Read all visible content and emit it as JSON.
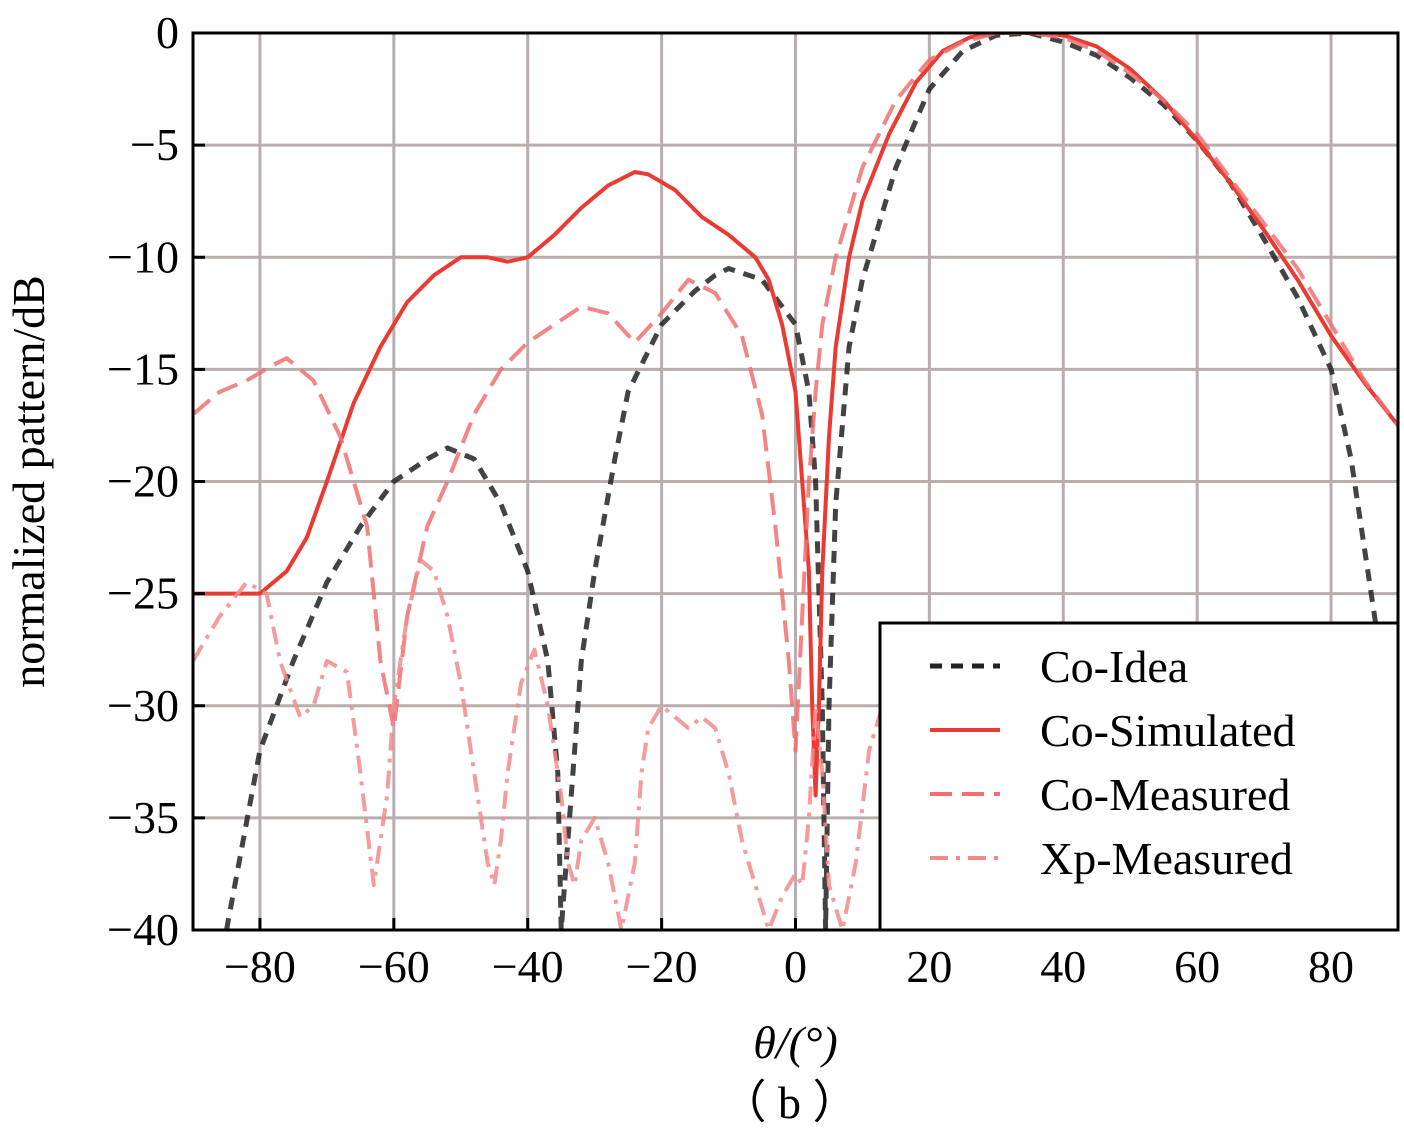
{
  "chart_data": {
    "type": "line",
    "xlabel": "θ/(°)",
    "ylabel": "normalized pattern/dB",
    "caption": "（ b ）",
    "xlim": [
      -90,
      90
    ],
    "ylim": [
      -40,
      0
    ],
    "xticks": [
      -80,
      -60,
      -40,
      -20,
      0,
      20,
      40,
      60,
      80
    ],
    "yticks": [
      0,
      -5,
      -10,
      -15,
      -20,
      -25,
      -30,
      -35,
      -40
    ],
    "xtick_labels": [
      "−80",
      "−60",
      "−40",
      "−20",
      "0",
      "20",
      "40",
      "60",
      "80"
    ],
    "ytick_labels": [
      "0",
      "−5",
      "−10",
      "−15",
      "−20",
      "−25",
      "−30",
      "−35",
      "−40"
    ],
    "grid": true,
    "legend_position": "bottom-right",
    "series": [
      {
        "name": "Co-Idea",
        "color": "#222222",
        "dash": "dashed",
        "x": [
          -85,
          -80,
          -75,
          -70,
          -65,
          -60,
          -55,
          -52,
          -48,
          -44,
          -40,
          -37,
          -35.5,
          -35,
          -34,
          -32,
          -30,
          -27,
          -25,
          -20,
          -15,
          -12,
          -10,
          -5,
          0,
          2,
          3,
          4,
          4.5,
          5,
          6,
          8,
          10,
          15,
          20,
          25,
          30,
          35,
          40,
          45,
          50,
          55,
          60,
          65,
          70,
          75,
          80,
          83,
          85,
          87
        ],
        "y": [
          -40,
          -32,
          -28,
          -24.5,
          -22,
          -20,
          -19,
          -18.5,
          -19,
          -21,
          -24,
          -28,
          -33,
          -40,
          -36,
          -28,
          -24,
          -19,
          -16,
          -13,
          -11.5,
          -10.8,
          -10.5,
          -11,
          -13,
          -16,
          -20,
          -30,
          -40,
          -30,
          -21,
          -14,
          -11,
          -6,
          -2.5,
          -0.8,
          -0.1,
          0,
          -0.4,
          -1,
          -2,
          -3.2,
          -4.8,
          -6.7,
          -9.2,
          -11.8,
          -15,
          -19,
          -23,
          -27
        ]
      },
      {
        "name": "Co-Simulated",
        "color": "#ea3a32",
        "dash": "solid",
        "x": [
          -90,
          -85,
          -80,
          -76,
          -73,
          -70,
          -66,
          -62,
          -58,
          -54,
          -50,
          -46,
          -43,
          -40,
          -36,
          -32,
          -28,
          -24,
          -22,
          -18,
          -14,
          -10,
          -6,
          -4,
          -2,
          0,
          1,
          2,
          2.5,
          3,
          3.5,
          4,
          5,
          6,
          8,
          10,
          14,
          18,
          22,
          26,
          30,
          35,
          40,
          45,
          50,
          55,
          60,
          65,
          70,
          75,
          80,
          85,
          90
        ],
        "y": [
          -25,
          -25,
          -25,
          -24,
          -22.5,
          -20,
          -16.5,
          -14,
          -12,
          -10.8,
          -10,
          -10,
          -10.2,
          -10,
          -9,
          -7.8,
          -6.8,
          -6.2,
          -6.3,
          -7,
          -8.2,
          -9,
          -10,
          -11,
          -13,
          -16,
          -20,
          -24,
          -30,
          -34,
          -30,
          -24,
          -18,
          -14,
          -10,
          -7.5,
          -4.5,
          -2.2,
          -0.8,
          -0.2,
          0,
          0,
          -0.1,
          -0.6,
          -1.6,
          -3,
          -4.8,
          -6.7,
          -8.8,
          -11,
          -13.5,
          -15.6,
          -17.5
        ]
      },
      {
        "name": "Co-Measured",
        "color": "#f07070",
        "dash": "long-dash",
        "x": [
          -90,
          -86,
          -82,
          -78,
          -76,
          -72,
          -68,
          -64,
          -62,
          -60,
          -58,
          -55,
          -52,
          -48,
          -44,
          -40,
          -36,
          -32,
          -28,
          -24,
          -20,
          -16,
          -12,
          -8,
          -5,
          -3,
          -1,
          0,
          1,
          2,
          3,
          4,
          6,
          8,
          10,
          15,
          20,
          25,
          30,
          35,
          40,
          45,
          50,
          55,
          60,
          65,
          70,
          75,
          80,
          85,
          90
        ],
        "y": [
          -17,
          -16,
          -15.5,
          -14.8,
          -14.5,
          -15.5,
          -18,
          -22,
          -28,
          -31,
          -26,
          -22,
          -20,
          -17,
          -15,
          -13.8,
          -13,
          -12.2,
          -12.5,
          -13.8,
          -12.5,
          -11,
          -11.6,
          -13.5,
          -17,
          -22,
          -28,
          -32,
          -26,
          -20,
          -16,
          -13,
          -10,
          -8,
          -6,
          -3,
          -1.2,
          -0.4,
          0,
          0,
          -0.2,
          -0.8,
          -1.8,
          -3,
          -4.5,
          -6.5,
          -8.5,
          -10.5,
          -13,
          -15.5,
          -17.5
        ]
      },
      {
        "name": "Xp-Measured",
        "color": "#f48a8a",
        "dash": "dash-dot",
        "x": [
          -90,
          -86,
          -82,
          -79,
          -77,
          -74,
          -72,
          -70,
          -67,
          -65,
          -63,
          -61,
          -60,
          -58,
          -56,
          -54,
          -52,
          -50,
          -48,
          -46,
          -45,
          -44,
          -43,
          -41,
          -39,
          -37,
          -35,
          -34,
          -33,
          -32,
          -30,
          -28,
          -26,
          -24,
          -23,
          -22,
          -20,
          -18,
          -16,
          -14,
          -12,
          -10,
          -8,
          -6,
          -4,
          -2,
          0,
          1,
          2,
          3,
          4,
          5,
          7,
          9,
          11,
          13
        ],
        "y": [
          -28,
          -26,
          -24.5,
          -25,
          -28,
          -30.5,
          -30,
          -28,
          -28.5,
          -33,
          -38,
          -34,
          -30,
          -26,
          -23.5,
          -24,
          -26,
          -29,
          -33,
          -37,
          -38,
          -36,
          -33,
          -29,
          -27.5,
          -30,
          -34,
          -37,
          -38,
          -36,
          -35,
          -37,
          -40,
          -37,
          -33,
          -31,
          -30,
          -30.5,
          -31,
          -30.5,
          -31,
          -33,
          -36,
          -38,
          -40,
          -38.5,
          -37.5,
          -38,
          -35,
          -30,
          -33,
          -38,
          -40,
          -37,
          -32,
          -30
        ]
      }
    ]
  }
}
